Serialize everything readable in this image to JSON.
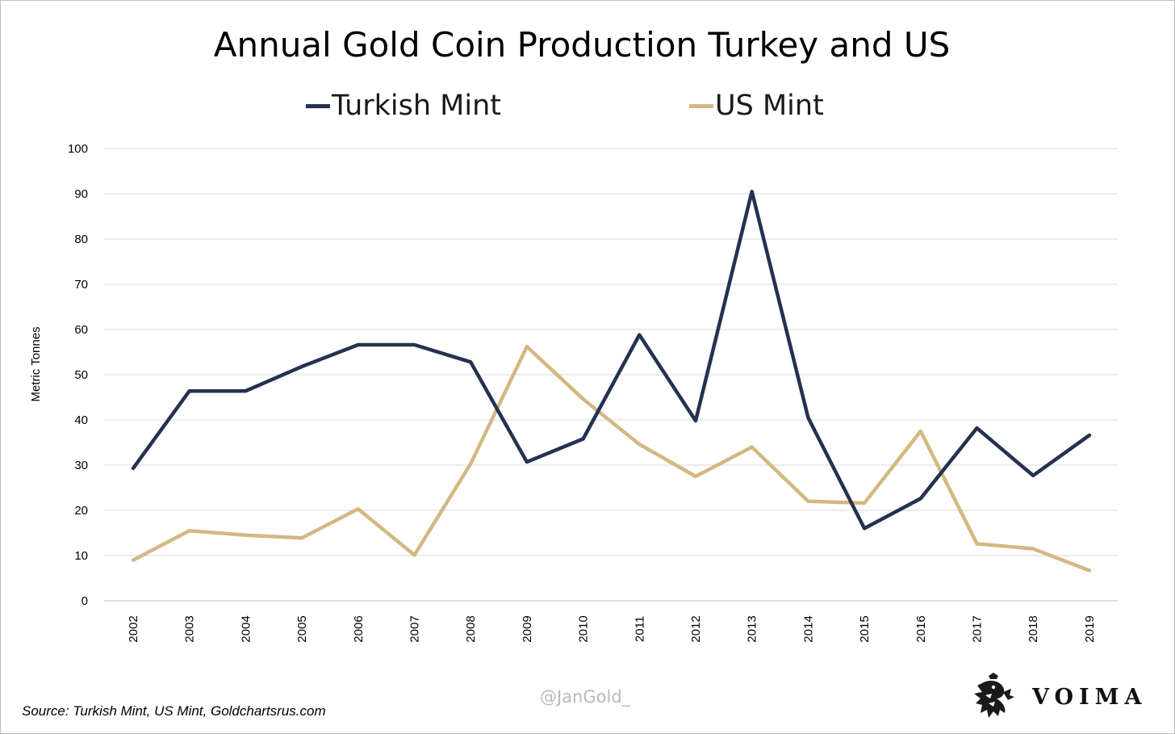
{
  "chart_data": {
    "type": "line",
    "title": "Annual Gold Coin Production Turkey and US",
    "xlabel": "",
    "ylabel": "Metric Tonnes",
    "ylim": [
      0,
      100
    ],
    "yticks": [
      "0",
      "10",
      "20",
      "30",
      "40",
      "50",
      "60",
      "70",
      "80",
      "90",
      "100"
    ],
    "categories": [
      "2002",
      "2003",
      "2004",
      "2005",
      "2006",
      "2007",
      "2008",
      "2009",
      "2010",
      "2011",
      "2012",
      "2013",
      "2014",
      "2015",
      "2016",
      "2017",
      "2018",
      "2019"
    ],
    "series": [
      {
        "name": "Turkish Mint",
        "color": "#24324f",
        "values": [
          29.3,
          46.4,
          46.4,
          51.8,
          56.6,
          56.6,
          52.8,
          30.7,
          35.8,
          58.8,
          39.8,
          90.5,
          40.5,
          16.0,
          22.6,
          38.2,
          27.7,
          36.6
        ]
      },
      {
        "name": "US Mint",
        "color": "#d4b882",
        "values": [
          9.0,
          15.5,
          14.5,
          13.9,
          20.3,
          10.1,
          30.3,
          56.2,
          44.6,
          34.6,
          27.5,
          34.0,
          22.0,
          21.6,
          37.5,
          12.6,
          11.5,
          6.7
        ]
      }
    ],
    "grid": true,
    "legend_position": "top-center"
  },
  "footer": {
    "source": "Source: Turkish Mint, US Mint, Goldchartsrus.com",
    "watermark": "@JanGold_",
    "brand": "VOIMA",
    "logo_icon": "griffin-logo-icon"
  }
}
